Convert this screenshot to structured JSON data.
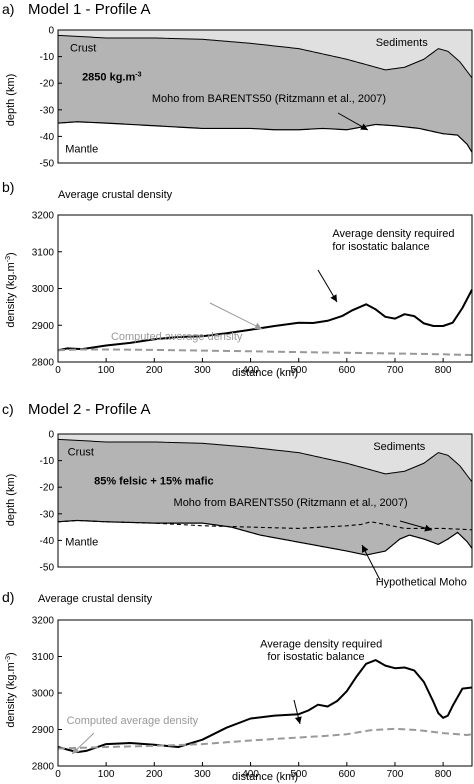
{
  "chart_data": [
    {
      "type": "area",
      "panel_label": "a)",
      "title": "Model 1 - Profile A",
      "xlabel": "",
      "ylabel": "depth (km)",
      "xlim": [
        0,
        860
      ],
      "ylim": [
        -50,
        0
      ],
      "yticks": [
        0,
        -10,
        -20,
        -30,
        -40,
        -50
      ],
      "layers": [
        {
          "name": "Sediments",
          "color": "#e0e0e0",
          "top": "surface",
          "bottom": "basement"
        },
        {
          "name": "Crust",
          "color": "#b4b4b4",
          "top": "basement",
          "bottom": "moho"
        },
        {
          "name": "Mantle",
          "color": "#ffffff",
          "top": "moho",
          "bottom": "base"
        }
      ],
      "surface": {
        "x": [
          0,
          860
        ],
        "y": [
          0,
          0
        ]
      },
      "basement": {
        "x": [
          0,
          50,
          100,
          200,
          300,
          400,
          500,
          550,
          600,
          640,
          680,
          720,
          760,
          790,
          810,
          835,
          860
        ],
        "y": [
          -2,
          -2.5,
          -3,
          -3,
          -3.5,
          -5,
          -7,
          -9,
          -11,
          -13,
          -15,
          -14,
          -11,
          -7,
          -8,
          -12,
          -18
        ]
      },
      "moho": {
        "x": [
          0,
          40,
          100,
          200,
          300,
          400,
          450,
          500,
          550,
          600,
          630,
          660,
          700,
          750,
          800,
          830,
          850,
          860
        ],
        "y": [
          -35,
          -34.5,
          -35,
          -36,
          -37,
          -37,
          -37.5,
          -37.5,
          -37,
          -37.5,
          -36.5,
          -35.5,
          -36,
          -37,
          -39,
          -39.5,
          -43,
          -46
        ]
      },
      "annotations": [
        {
          "text": "Sediments",
          "x": 660,
          "y": -6
        },
        {
          "text": "Crust",
          "x": 25,
          "y": -8
        },
        {
          "text": "2850 kg.m",
          "superscript": "-3",
          "x": 50,
          "y": -19,
          "bold": true
        },
        {
          "text": "Moho from BARENTS50 (Ritzmann et al., 2007)",
          "x": 195,
          "y": -27
        },
        {
          "text": "Mantle",
          "x": 15,
          "y": -46
        }
      ]
    },
    {
      "type": "line",
      "panel_label": "b)",
      "title": "Average crustal density",
      "xlabel": "distance (km)",
      "ylabel": "density (kg.m",
      "ylabel_superscript": "-3",
      "ylabel_close": ")",
      "xlim": [
        0,
        860
      ],
      "ylim": [
        2800,
        3200
      ],
      "xticks": [
        0,
        100,
        200,
        300,
        400,
        500,
        600,
        700,
        800
      ],
      "yticks": [
        2800,
        2900,
        3000,
        3100,
        3200
      ],
      "series": [
        {
          "name": "Average density required for isostatic balance",
          "color": "#000000",
          "dash": false,
          "x": [
            0,
            20,
            50,
            100,
            150,
            200,
            250,
            300,
            350,
            400,
            450,
            500,
            530,
            560,
            590,
            610,
            640,
            660,
            680,
            700,
            720,
            740,
            760,
            780,
            800,
            820,
            840,
            860
          ],
          "y": [
            2832,
            2837,
            2835,
            2845,
            2852,
            2862,
            2868,
            2870,
            2878,
            2888,
            2898,
            2907,
            2906,
            2912,
            2925,
            2940,
            2957,
            2943,
            2923,
            2918,
            2930,
            2925,
            2905,
            2898,
            2898,
            2907,
            2947,
            2997
          ]
        },
        {
          "name": "Computed average density",
          "color": "#999999",
          "dash": true,
          "x": [
            0,
            50,
            100,
            200,
            300,
            400,
            500,
            600,
            700,
            800,
            860
          ],
          "y": [
            2832,
            2834,
            2834,
            2833,
            2831,
            2829,
            2827,
            2825,
            2823,
            2821,
            2819
          ]
        }
      ],
      "annotations": [
        {
          "text": "Average density required",
          "x": 570,
          "y": 3140
        },
        {
          "text": "for isostatic balance",
          "x": 570,
          "y": 3105
        },
        {
          "text": "Computed average density",
          "x": 110,
          "y": 2860,
          "color": "#999999"
        }
      ]
    },
    {
      "type": "area",
      "panel_label": "c)",
      "title": "Model 2 - Profile A",
      "xlabel": "",
      "ylabel": "depth (km)",
      "xlim": [
        0,
        860
      ],
      "ylim": [
        -50,
        0
      ],
      "yticks": [
        0,
        -10,
        -20,
        -30,
        -40,
        -50
      ],
      "layers": [
        {
          "name": "Sediments",
          "color": "#e0e0e0",
          "top": "surface",
          "bottom": "basement"
        },
        {
          "name": "Crust",
          "color": "#b4b4b4",
          "top": "basement",
          "bottom": "moho"
        },
        {
          "name": "Mantle",
          "color": "#ffffff",
          "top": "moho",
          "bottom": "base"
        }
      ],
      "surface": {
        "x": [
          0,
          860
        ],
        "y": [
          0,
          0
        ]
      },
      "basement": {
        "x": [
          0,
          50,
          100,
          200,
          300,
          400,
          500,
          550,
          600,
          640,
          680,
          720,
          760,
          790,
          810,
          835,
          860
        ],
        "y": [
          -2,
          -2.5,
          -3,
          -3,
          -3.5,
          -5,
          -7,
          -9,
          -11,
          -13,
          -15,
          -14,
          -11,
          -7,
          -8,
          -12,
          -18
        ]
      },
      "moho": {
        "x": [
          0,
          40,
          100,
          200,
          300,
          360,
          420,
          480,
          540,
          600,
          640,
          680,
          710,
          730,
          760,
          790,
          810,
          830,
          850,
          860
        ],
        "y": [
          -33,
          -32.5,
          -33,
          -33.5,
          -33.5,
          -35,
          -38,
          -40,
          -42,
          -44,
          -45.5,
          -44,
          -39.5,
          -38,
          -39.5,
          -41.5,
          -39.5,
          -37,
          -40.5,
          -43
        ]
      },
      "moho_reference": {
        "name": "Moho from BARENTS50 (Ritzmann et al., 2007)",
        "dash": true,
        "x": [
          0,
          40,
          100,
          200,
          300,
          400,
          500,
          550,
          600,
          630,
          650,
          680,
          720,
          760,
          800,
          860
        ],
        "y": [
          -33,
          -32.5,
          -33,
          -33.5,
          -34.5,
          -35,
          -35.5,
          -35,
          -34.5,
          -34,
          -33,
          -34,
          -35.5,
          -35.5,
          -35.5,
          -36
        ]
      },
      "annotations": [
        {
          "text": "Sediments",
          "x": 655,
          "y": -6
        },
        {
          "text": "Crust",
          "x": 20,
          "y": -8
        },
        {
          "text": "85% felsic + 15% mafic",
          "x": 75,
          "y": -19,
          "bold": true
        },
        {
          "text": "Moho from BARENTS50 (Ritzmann et al., 2007)",
          "x": 240,
          "y": -27
        },
        {
          "text": "Mantle",
          "x": 15,
          "y": -42
        },
        {
          "text": "Hypothetical Moho",
          "x": 660,
          "y": -57
        }
      ]
    },
    {
      "type": "line",
      "panel_label": "d)",
      "title": "Average crustal density",
      "xlabel": "distance (km)",
      "ylabel": "density (kg.m",
      "ylabel_superscript": "-3",
      "ylabel_close": ")",
      "xlim": [
        0,
        860
      ],
      "ylim": [
        2800,
        3200
      ],
      "xticks": [
        0,
        100,
        200,
        300,
        400,
        500,
        600,
        700,
        800
      ],
      "yticks": [
        2800,
        2900,
        3000,
        3100,
        3200
      ],
      "series": [
        {
          "name": "Average density required for isostatic balance",
          "color": "#000000",
          "dash": false,
          "x": [
            0,
            20,
            40,
            60,
            100,
            150,
            200,
            250,
            300,
            350,
            400,
            450,
            500,
            520,
            540,
            560,
            580,
            600,
            620,
            640,
            660,
            680,
            700,
            720,
            740,
            760,
            780,
            790,
            800,
            810,
            820,
            840,
            860
          ],
          "y": [
            2852,
            2845,
            2838,
            2842,
            2860,
            2863,
            2858,
            2852,
            2872,
            2905,
            2930,
            2938,
            2942,
            2952,
            2968,
            2963,
            2978,
            3005,
            3045,
            3080,
            3090,
            3075,
            3068,
            3070,
            3062,
            3030,
            2975,
            2945,
            2932,
            2938,
            2965,
            3012,
            3015
          ]
        },
        {
          "name": "Computed average density",
          "color": "#999999",
          "dash": true,
          "x": [
            0,
            50,
            100,
            200,
            300,
            350,
            400,
            450,
            500,
            550,
            600,
            650,
            700,
            750,
            800,
            850,
            860
          ],
          "y": [
            2848,
            2850,
            2852,
            2855,
            2860,
            2865,
            2870,
            2874,
            2878,
            2882,
            2887,
            2898,
            2902,
            2898,
            2890,
            2885,
            2887
          ]
        }
      ],
      "annotations": [
        {
          "text": "Average density required",
          "x": 420,
          "y": 3125
        },
        {
          "text": "for isostatic balance",
          "x": 435,
          "y": 3090
        },
        {
          "text": "Computed average density",
          "x": 18,
          "y": 2915,
          "color": "#999999"
        }
      ]
    }
  ]
}
